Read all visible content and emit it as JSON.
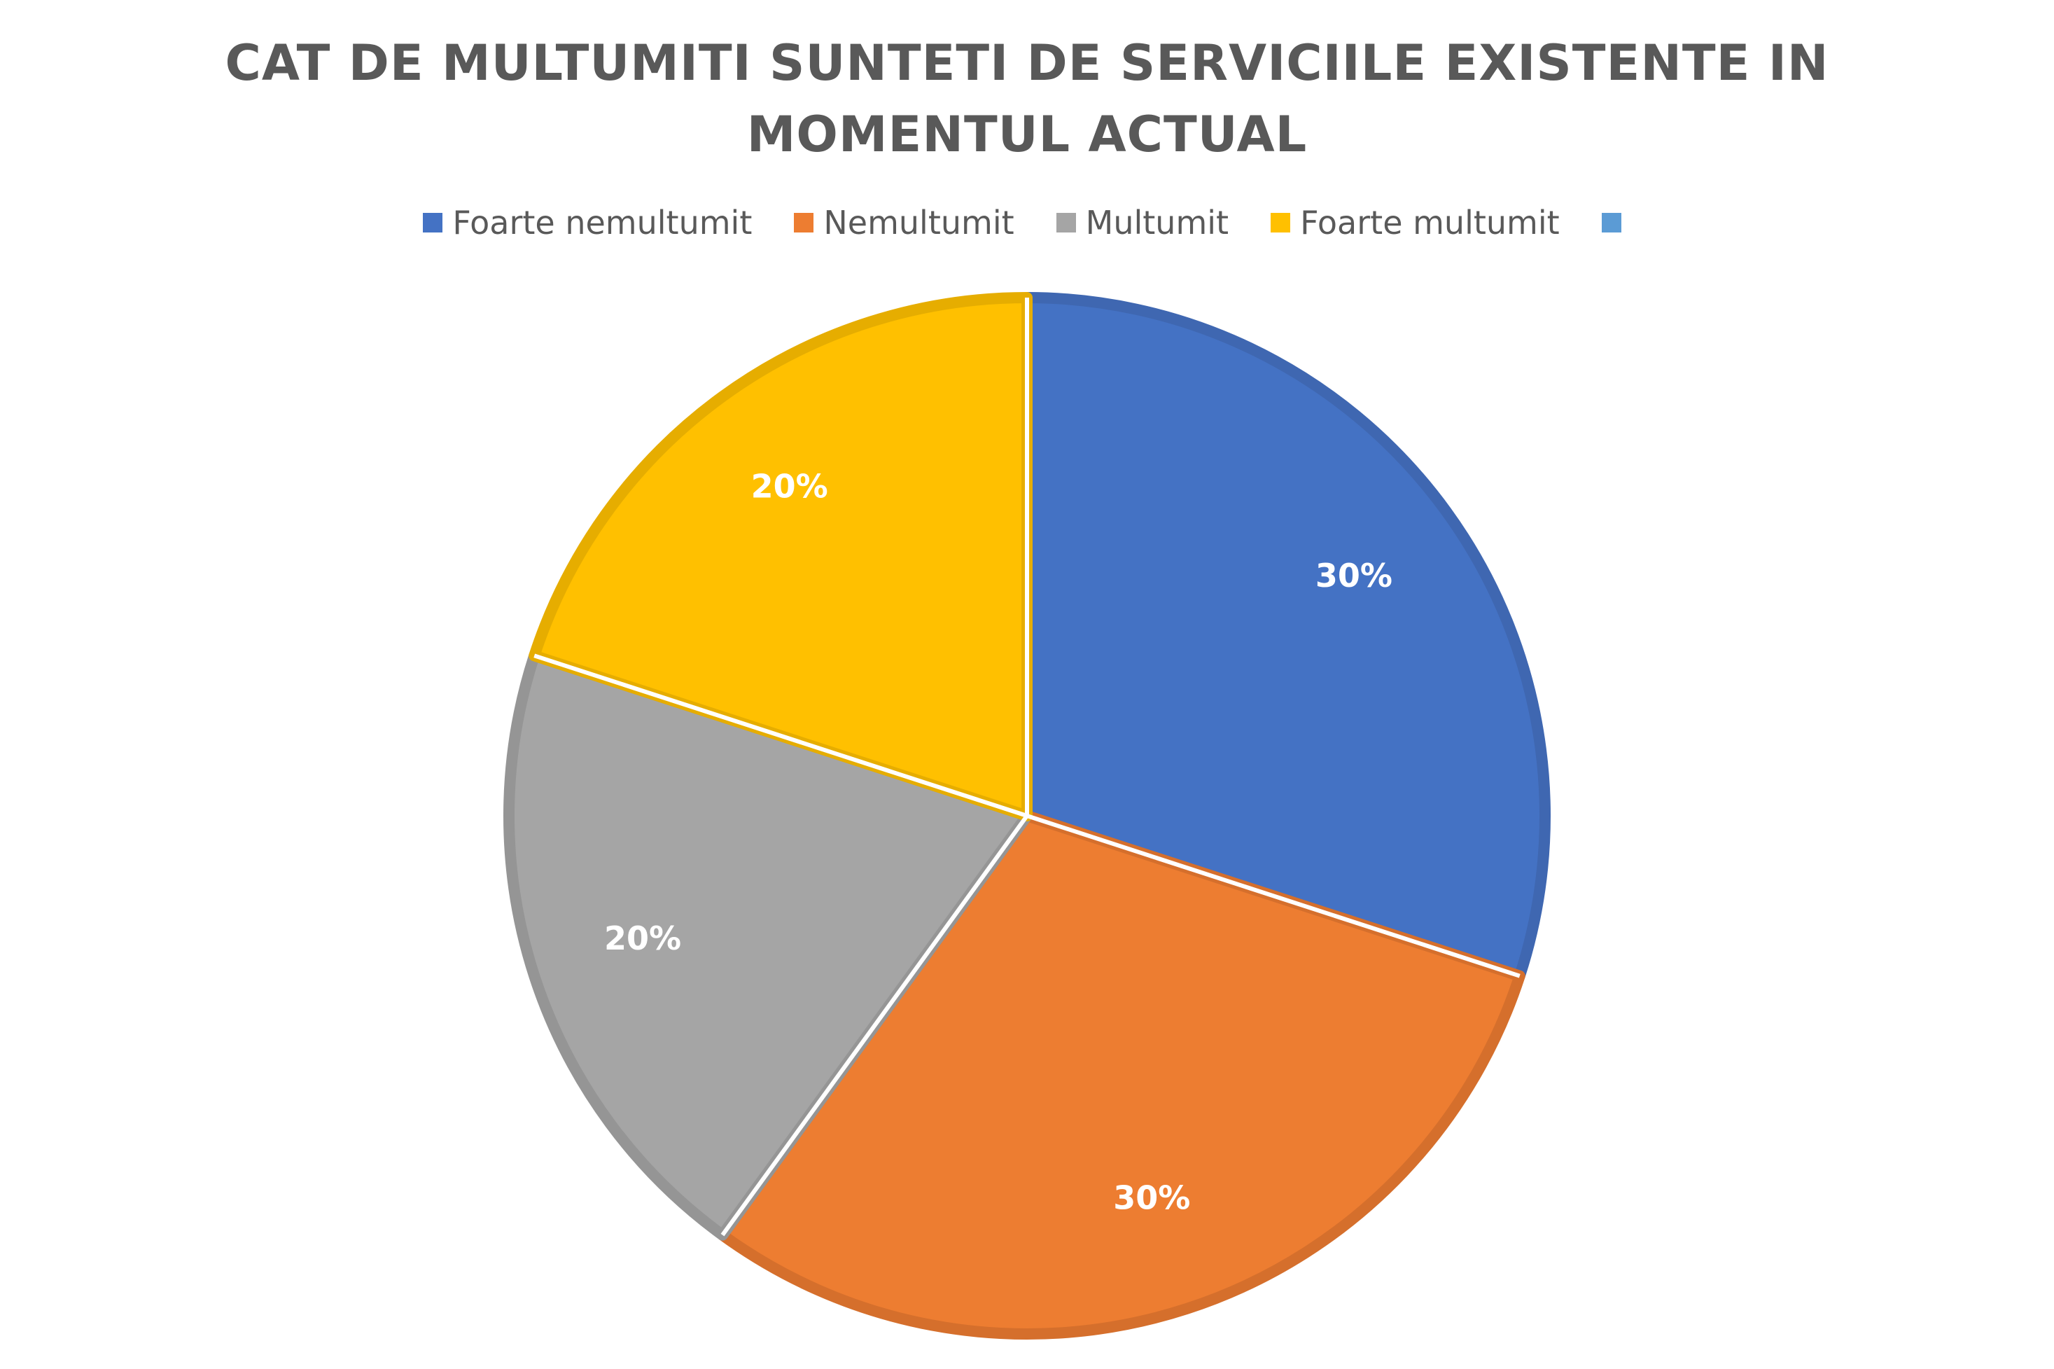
{
  "chart_data": {
    "type": "pie",
    "title_lines": [
      "CAT DE MULTUMITI SUNTETI DE SERVICIILE EXISTENTE IN",
      "MOMENTUL ACTUAL"
    ],
    "categories": [
      "Foarte nemultumit",
      "Nemultumit",
      "Multumit",
      "Foarte multumit",
      ""
    ],
    "values": [
      30,
      30,
      20,
      20,
      0
    ],
    "data_labels": [
      "30%",
      "30%",
      "20%",
      "20%",
      ""
    ],
    "colors": [
      "#4472C4",
      "#ED7D31",
      "#A5A5A5",
      "#FFC000",
      "#5B9BD5"
    ],
    "border_colors": [
      "#3F67B1",
      "#D56F2C",
      "#959595",
      "#E6AD00",
      "#5B9BD5"
    ],
    "legend_position": "top",
    "start_angle_deg": 0,
    "direction": "clockwise"
  }
}
